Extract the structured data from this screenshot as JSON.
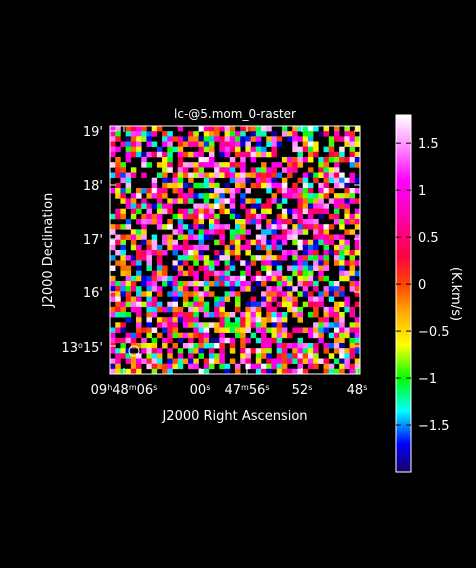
{
  "chart_data": {
    "type": "heatmap",
    "title": "lc-@5.mom_0-raster",
    "xlabel": "J2000 Right Ascension",
    "ylabel": "J2000 Declination",
    "x_ticks": [
      {
        "label": "09h48m06s",
        "parts": [
          [
            "09",
            "n"
          ],
          [
            "h",
            "s"
          ],
          [
            "48",
            "n"
          ],
          [
            "m",
            "s"
          ],
          [
            "06",
            "n"
          ],
          [
            "s",
            "s"
          ]
        ]
      },
      {
        "label": "00s",
        "parts": [
          [
            "00",
            "n"
          ],
          [
            "s",
            "s"
          ]
        ]
      },
      {
        "label": "47m56s",
        "parts": [
          [
            "47",
            "n"
          ],
          [
            "m",
            "s"
          ],
          [
            "56",
            "n"
          ],
          [
            "s",
            "s"
          ]
        ]
      },
      {
        "label": "52s",
        "parts": [
          [
            "52",
            "n"
          ],
          [
            "s",
            "s"
          ]
        ]
      },
      {
        "label": "48s",
        "parts": [
          [
            "48",
            "n"
          ],
          [
            "s",
            "s"
          ]
        ]
      }
    ],
    "y_ticks": [
      {
        "label": "19'",
        "parts": [
          [
            "19'",
            "n"
          ]
        ]
      },
      {
        "label": "18'",
        "parts": [
          [
            "18'",
            "n"
          ]
        ]
      },
      {
        "label": "17'",
        "parts": [
          [
            "17'",
            "n"
          ]
        ]
      },
      {
        "label": "16'",
        "parts": [
          [
            "16'",
            "n"
          ]
        ]
      },
      {
        "label": "13°15'",
        "parts": [
          [
            "13",
            "n"
          ],
          [
            "o",
            "s"
          ],
          [
            "15'",
            "n"
          ]
        ]
      }
    ],
    "grid_size": [
      48,
      48
    ],
    "value_range": [
      -2.0,
      1.8
    ],
    "colorbar": {
      "label": "(K.km/s)",
      "range": [
        -2.0,
        1.8
      ],
      "ticks": [
        {
          "value": 1.5,
          "label": "1.5"
        },
        {
          "value": 1.0,
          "label": "1"
        },
        {
          "value": 0.5,
          "label": "0.5"
        },
        {
          "value": 0.0,
          "label": "0"
        },
        {
          "value": -0.5,
          "label": "−0.5"
        },
        {
          "value": -1.0,
          "label": "−1"
        },
        {
          "value": -1.5,
          "label": "−1.5"
        }
      ],
      "colormap_stops": [
        {
          "value": -2.0,
          "color": "#1a0066"
        },
        {
          "value": -1.7,
          "color": "#0000ff"
        },
        {
          "value": -1.35,
          "color": "#00ffff"
        },
        {
          "value": -1.0,
          "color": "#00ff00"
        },
        {
          "value": -0.65,
          "color": "#ffff00"
        },
        {
          "value": -0.3,
          "color": "#ffaa00"
        },
        {
          "value": 0.0,
          "color": "#ff4400"
        },
        {
          "value": 0.3,
          "color": "#ff0044"
        },
        {
          "value": 0.7,
          "color": "#ff00aa"
        },
        {
          "value": 1.1,
          "color": "#ff00ff"
        },
        {
          "value": 1.45,
          "color": "#ff88ff"
        },
        {
          "value": 1.8,
          "color": "#ffffff"
        }
      ]
    },
    "blank_fraction": 0.3,
    "beam_marker": "circle"
  }
}
